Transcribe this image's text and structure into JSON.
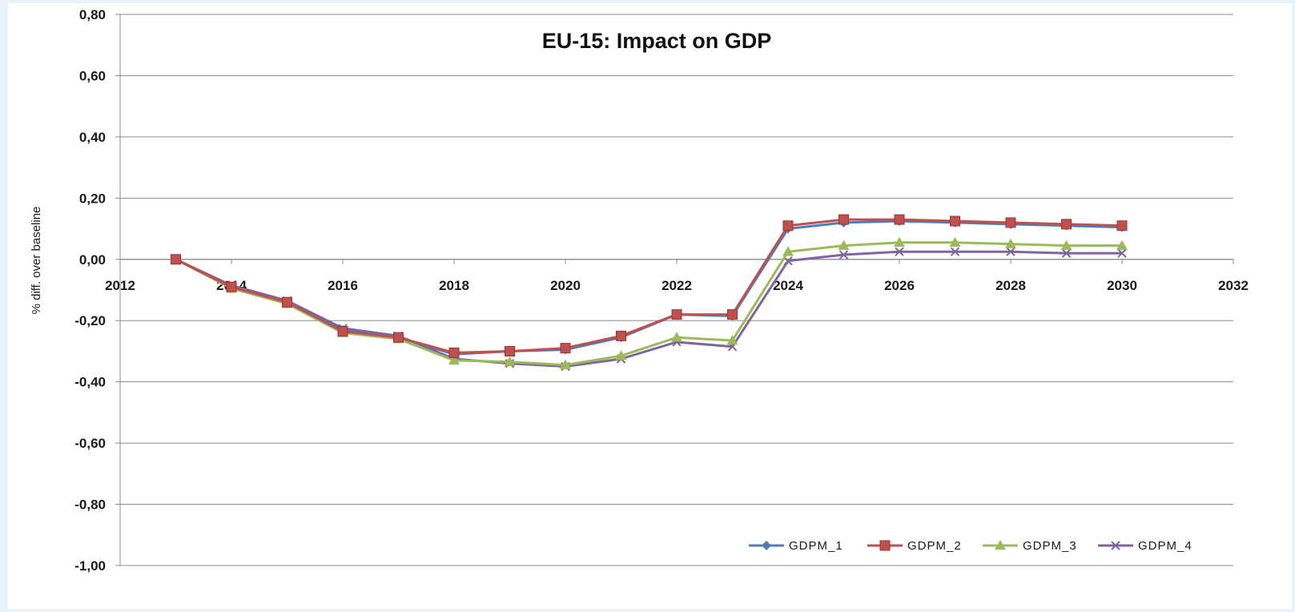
{
  "chart_data": {
    "type": "line",
    "title": "EU-15: Impact on GDP",
    "xlabel": "",
    "ylabel": "% diff. over baseline",
    "xlim": [
      2012,
      2032
    ],
    "ylim": [
      -1.0,
      0.8
    ],
    "x_ticks": [
      "2012",
      "2014",
      "2016",
      "2018",
      "2020",
      "2022",
      "2024",
      "2026",
      "2028",
      "2030",
      "2032"
    ],
    "y_ticks": [
      "0,80",
      "0,60",
      "0,40",
      "0,20",
      "0,00",
      "-0,20",
      "-0,40",
      "-0,60",
      "-0,80",
      "-1,00"
    ],
    "x": [
      2013,
      2014,
      2015,
      2016,
      2017,
      2018,
      2019,
      2020,
      2021,
      2022,
      2023,
      2024,
      2025,
      2026,
      2027,
      2028,
      2029,
      2030
    ],
    "grid": "horizontal",
    "legend_position": "bottom-right",
    "series": [
      {
        "name": "GDPM_1",
        "color": "#4a7ebb",
        "marker": "diamond",
        "values": [
          0.0,
          -0.09,
          -0.14,
          -0.23,
          -0.255,
          -0.31,
          -0.3,
          -0.295,
          -0.255,
          -0.18,
          -0.185,
          0.1,
          0.12,
          0.125,
          0.12,
          0.115,
          0.11,
          0.105
        ]
      },
      {
        "name": "GDPM_2",
        "color": "#c0504d",
        "marker": "square",
        "values": [
          0.0,
          -0.09,
          -0.14,
          -0.235,
          -0.255,
          -0.305,
          -0.3,
          -0.29,
          -0.25,
          -0.18,
          -0.18,
          0.11,
          0.13,
          0.13,
          0.125,
          0.12,
          0.115,
          0.11
        ]
      },
      {
        "name": "GDPM_3",
        "color": "#9bbb59",
        "marker": "triangle",
        "values": [
          0.0,
          -0.095,
          -0.145,
          -0.24,
          -0.26,
          -0.33,
          -0.335,
          -0.345,
          -0.315,
          -0.255,
          -0.265,
          0.025,
          0.045,
          0.055,
          0.055,
          0.05,
          0.045,
          0.045
        ]
      },
      {
        "name": "GDPM_4",
        "color": "#8064a2",
        "marker": "x",
        "values": [
          0.0,
          -0.085,
          -0.135,
          -0.225,
          -0.25,
          -0.325,
          -0.34,
          -0.35,
          -0.325,
          -0.27,
          -0.285,
          -0.005,
          0.015,
          0.025,
          0.025,
          0.025,
          0.02,
          0.02
        ]
      }
    ]
  }
}
